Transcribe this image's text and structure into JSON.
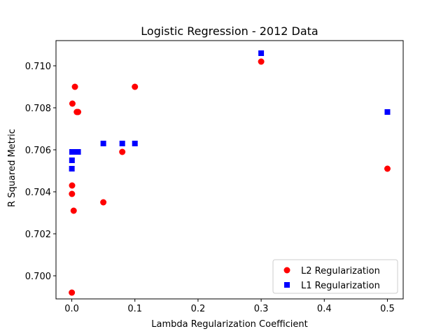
{
  "chart_data": {
    "type": "scatter",
    "title": "Logistic Regression - 2012 Data",
    "xlabel": "Lambda Regularization Coefficient",
    "ylabel": "R Squared Metric",
    "xlim": [
      -0.025,
      0.525
    ],
    "ylim": [
      0.6989,
      0.7112
    ],
    "xticks": [
      0.0,
      0.1,
      0.2,
      0.3,
      0.4,
      0.5
    ],
    "xtick_labels": [
      "0.0",
      "0.1",
      "0.2",
      "0.3",
      "0.4",
      "0.5"
    ],
    "yticks": [
      0.7,
      0.702,
      0.704,
      0.706,
      0.708,
      0.71
    ],
    "ytick_labels": [
      "0.700",
      "0.702",
      "0.704",
      "0.706",
      "0.708",
      "0.710"
    ],
    "grid": false,
    "legend_position": "lower-right",
    "series": [
      {
        "name": "L2 Regularization",
        "marker": "circle",
        "color": "#ff0000",
        "points": [
          {
            "x": 0.0001,
            "y": 0.6992
          },
          {
            "x": 0.0003,
            "y": 0.7039
          },
          {
            "x": 0.0005,
            "y": 0.7043
          },
          {
            "x": 0.001,
            "y": 0.7082
          },
          {
            "x": 0.003,
            "y": 0.7031
          },
          {
            "x": 0.005,
            "y": 0.709
          },
          {
            "x": 0.008,
            "y": 0.7078
          },
          {
            "x": 0.01,
            "y": 0.7078
          },
          {
            "x": 0.05,
            "y": 0.7035
          },
          {
            "x": 0.08,
            "y": 0.7059
          },
          {
            "x": 0.1,
            "y": 0.709
          },
          {
            "x": 0.3,
            "y": 0.7102
          },
          {
            "x": 0.5,
            "y": 0.7051
          }
        ]
      },
      {
        "name": "L1 Regularization",
        "marker": "square",
        "color": "#0000ff",
        "points": [
          {
            "x": 0.0001,
            "y": 0.7051
          },
          {
            "x": 0.0003,
            "y": 0.7055
          },
          {
            "x": 0.0005,
            "y": 0.7059
          },
          {
            "x": 0.001,
            "y": 0.7059
          },
          {
            "x": 0.003,
            "y": 0.7059
          },
          {
            "x": 0.005,
            "y": 0.7059
          },
          {
            "x": 0.008,
            "y": 0.7059
          },
          {
            "x": 0.01,
            "y": 0.7059
          },
          {
            "x": 0.05,
            "y": 0.7063
          },
          {
            "x": 0.08,
            "y": 0.7063
          },
          {
            "x": 0.1,
            "y": 0.7063
          },
          {
            "x": 0.3,
            "y": 0.7106
          },
          {
            "x": 0.5,
            "y": 0.7078
          }
        ]
      }
    ]
  }
}
